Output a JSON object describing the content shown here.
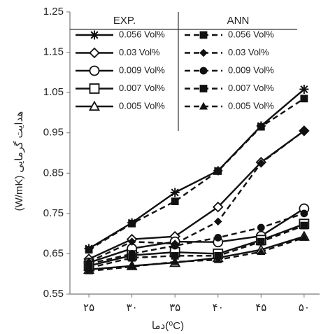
{
  "chart_data": {
    "type": "line",
    "x_label": "دما(⁰C)",
    "y_label": "(W/mK) هدایت گرمایی",
    "x": [
      25,
      30,
      35,
      40,
      45,
      50
    ],
    "xlim": [
      22.8,
      51.8
    ],
    "xticks": [
      {
        "value": 25,
        "label": "۲۵"
      },
      {
        "value": 30,
        "label": "۳۰"
      },
      {
        "value": 35,
        "label": "۳۵"
      },
      {
        "value": 40,
        "label": "۴۰"
      },
      {
        "value": 45,
        "label": "۴۵"
      },
      {
        "value": 50,
        "label": "۵۰"
      }
    ],
    "ylim": [
      0.55,
      1.25
    ],
    "yticks": [
      0.55,
      0.65,
      0.75,
      0.85,
      0.95,
      1.05,
      1.15,
      1.25
    ],
    "grid": false,
    "legend": "top",
    "series_groups": [
      {
        "name": "EXP.",
        "style": "solid",
        "series": [
          {
            "name": "0.056 Vol%",
            "color": "#111111",
            "marker": "asterisk",
            "values": [
              0.663,
              0.727,
              0.802,
              0.856,
              0.967,
              1.058
            ]
          },
          {
            "name": "0.03 Vol%",
            "color": "#111111",
            "marker": "diamond",
            "values": [
              0.637,
              0.686,
              0.693,
              0.766,
              0.877,
              0.955
            ]
          },
          {
            "name": "0.009 Vol%",
            "color": "#111111",
            "marker": "circle",
            "values": [
              0.628,
              0.663,
              0.68,
              0.679,
              0.694,
              0.762
            ]
          },
          {
            "name": "0.007 Vol%",
            "color": "#111111",
            "marker": "square",
            "values": [
              0.62,
              0.646,
              0.654,
              0.65,
              0.684,
              0.724
            ]
          },
          {
            "name": "0.005 Vol%",
            "color": "#111111",
            "marker": "triangle",
            "values": [
              0.611,
              0.62,
              0.628,
              0.64,
              0.66,
              0.693
            ]
          }
        ]
      },
      {
        "name": "ANN",
        "style": "dashed",
        "series": [
          {
            "name": "0.056 Vol%",
            "color": "#111111",
            "marker": "square-filled",
            "values": [
              0.66,
              0.725,
              0.78,
              0.855,
              0.965,
              1.035
            ]
          },
          {
            "name": "0.03 Vol%",
            "color": "#111111",
            "marker": "diamond-filled",
            "values": [
              0.63,
              0.68,
              0.675,
              0.73,
              0.875,
              0.955
            ]
          },
          {
            "name": "0.009 Vol%",
            "color": "#111111",
            "marker": "circle-filled",
            "values": [
              0.625,
              0.65,
              0.67,
              0.69,
              0.715,
              0.75
            ]
          },
          {
            "name": "0.007 Vol%",
            "color": "#111111",
            "marker": "square-filled",
            "values": [
              0.615,
              0.64,
              0.645,
              0.645,
              0.68,
              0.72
            ]
          },
          {
            "name": "0.005 Vol%",
            "color": "#111111",
            "marker": "triangle-filled",
            "values": [
              0.607,
              0.618,
              0.63,
              0.635,
              0.655,
              0.69
            ]
          }
        ]
      }
    ]
  }
}
